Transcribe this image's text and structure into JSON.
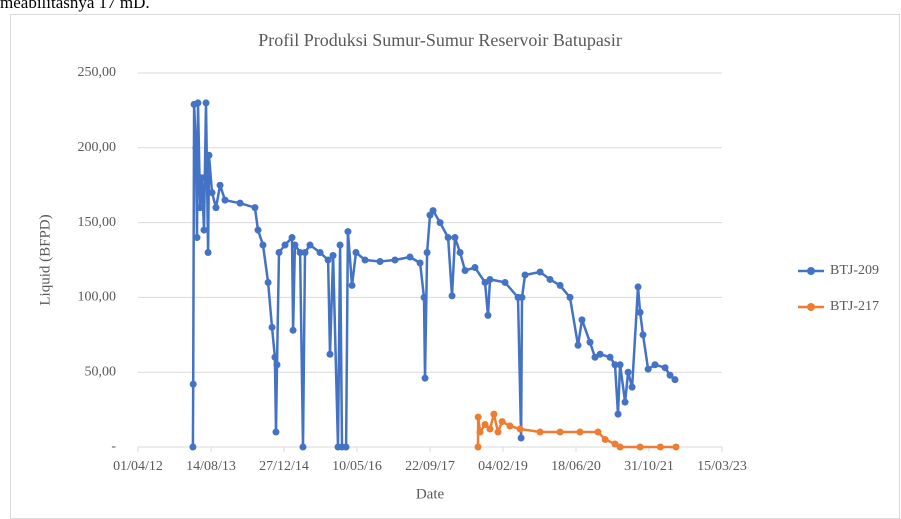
{
  "text_above": "meabilitasnya 17 mD.",
  "chart_data": {
    "type": "line",
    "title": "Profil Produksi Sumur-Sumur Reservoir Batupasir",
    "x_label": "Date",
    "y_label": "Liquid (BFPD)",
    "xlim": [
      "2012-04-01",
      "2023-03-15"
    ],
    "xticks": [
      {
        "value": "2012-04-01",
        "label": "01/04/12"
      },
      {
        "value": "2013-08-14",
        "label": "14/08/13"
      },
      {
        "value": "2014-12-27",
        "label": "27/12/14"
      },
      {
        "value": "2016-05-10",
        "label": "10/05/16"
      },
      {
        "value": "2017-09-22",
        "label": "22/09/17"
      },
      {
        "value": "2019-02-04",
        "label": "04/02/19"
      },
      {
        "value": "2020-06-18",
        "label": "18/06/20"
      },
      {
        "value": "2021-10-31",
        "label": "31/10/21"
      },
      {
        "value": "2023-03-15",
        "label": "15/03/23"
      }
    ],
    "ylim": [
      0,
      250
    ],
    "yticks": [
      {
        "value": 0,
        "label": "-"
      },
      {
        "value": 50,
        "label": "50,00"
      },
      {
        "value": 100,
        "label": "100,00"
      },
      {
        "value": 150,
        "label": "150,00"
      },
      {
        "value": 200,
        "label": "200,00"
      },
      {
        "value": 250,
        "label": "250,00"
      }
    ],
    "grid": true,
    "legend": "right",
    "series": [
      {
        "name": "BTJ-209",
        "color": "#4472c4",
        "x": [
          "2013-04-12",
          "2013-04-14",
          "2013-04-20",
          "2013-05-03",
          "2013-05-10",
          "2013-05-17",
          "2013-05-31",
          "2013-06-13",
          "2013-06-27",
          "2013-07-11",
          "2013-07-25",
          "2013-07-31",
          "2013-08-21",
          "2013-09-17",
          "2013-10-15",
          "2013-11-18",
          "2014-03-01",
          "2014-06-11",
          "2014-07-02",
          "2014-08-05",
          "2014-09-09",
          "2014-10-06",
          "2014-10-26",
          "2014-11-02",
          "2014-11-09",
          "2014-11-23",
          "2015-01-03",
          "2015-02-20",
          "2015-02-27",
          "2015-03-12",
          "2015-04-16",
          "2015-05-06",
          "2015-05-20",
          "2015-06-23",
          "2015-08-31",
          "2015-10-25",
          "2015-11-07",
          "2015-11-28",
          "2016-01-01",
          "2016-01-15",
          "2016-01-28",
          "2016-02-25",
          "2016-03-09",
          "2016-04-06",
          "2016-05-03",
          "2016-07-04",
          "2016-10-15",
          "2017-01-25",
          "2017-05-08",
          "2017-07-16",
          "2017-08-12",
          "2017-08-19",
          "2017-09-02",
          "2017-09-22",
          "2017-10-13",
          "2017-11-30",
          "2018-01-24",
          "2018-02-20",
          "2018-03-12",
          "2018-04-16",
          "2018-05-20",
          "2018-07-27",
          "2018-10-04",
          "2018-10-24",
          "2018-11-07",
          "2019-02-18",
          "2019-05-18",
          "2019-06-08",
          "2019-06-14",
          "2019-07-05",
          "2019-10-16",
          "2019-12-23",
          "2020-03-01",
          "2020-05-08",
          "2020-07-02",
          "2020-07-29",
          "2020-09-22",
          "2020-10-26",
          "2020-11-30",
          "2021-02-06",
          "2021-03-12",
          "2021-04-02",
          "2021-04-16",
          "2021-05-20",
          "2021-06-10",
          "2021-07-07",
          "2021-08-17",
          "2021-08-31",
          "2021-09-20",
          "2021-10-25",
          "2021-12-11",
          "2022-02-18",
          "2022-03-24",
          "2022-04-27"
        ],
        "values": [
          0,
          42,
          229,
          200,
          140,
          230,
          160,
          180,
          145,
          230,
          130,
          195,
          170,
          160,
          175,
          165,
          163,
          160,
          145,
          135,
          110,
          80,
          60,
          10,
          55,
          130,
          135,
          140,
          78,
          135,
          130,
          0,
          130,
          135,
          130,
          125,
          62,
          128,
          0,
          135,
          0,
          0,
          144,
          108,
          130,
          125,
          124,
          125,
          127,
          123,
          100,
          46,
          130,
          155,
          158,
          150,
          140,
          101,
          140,
          130,
          118,
          120,
          110,
          88,
          112,
          110,
          100,
          6,
          100,
          115,
          117,
          112,
          108,
          100,
          68,
          85,
          70,
          60,
          62,
          60,
          55,
          22,
          55,
          30,
          50,
          40,
          107,
          90,
          75,
          52,
          55,
          53,
          48,
          45
        ]
      },
      {
        "name": "BTJ-217",
        "color": "#ed7d31",
        "x": [
          "2018-08-17",
          "2018-08-18",
          "2018-08-31",
          "2018-10-04",
          "2018-11-07",
          "2018-12-04",
          "2019-01-01",
          "2019-01-29",
          "2019-03-24",
          "2019-06-01",
          "2019-10-16",
          "2020-03-01",
          "2020-07-15",
          "2020-11-16",
          "2021-01-04",
          "2021-03-12",
          "2021-04-16",
          "2021-08-31",
          "2022-01-17",
          "2022-05-04"
        ],
        "values": [
          0,
          20,
          10,
          15,
          12,
          22,
          10,
          17,
          14,
          12,
          10,
          10,
          10,
          10,
          5,
          2,
          0,
          0,
          0,
          0
        ]
      }
    ]
  }
}
